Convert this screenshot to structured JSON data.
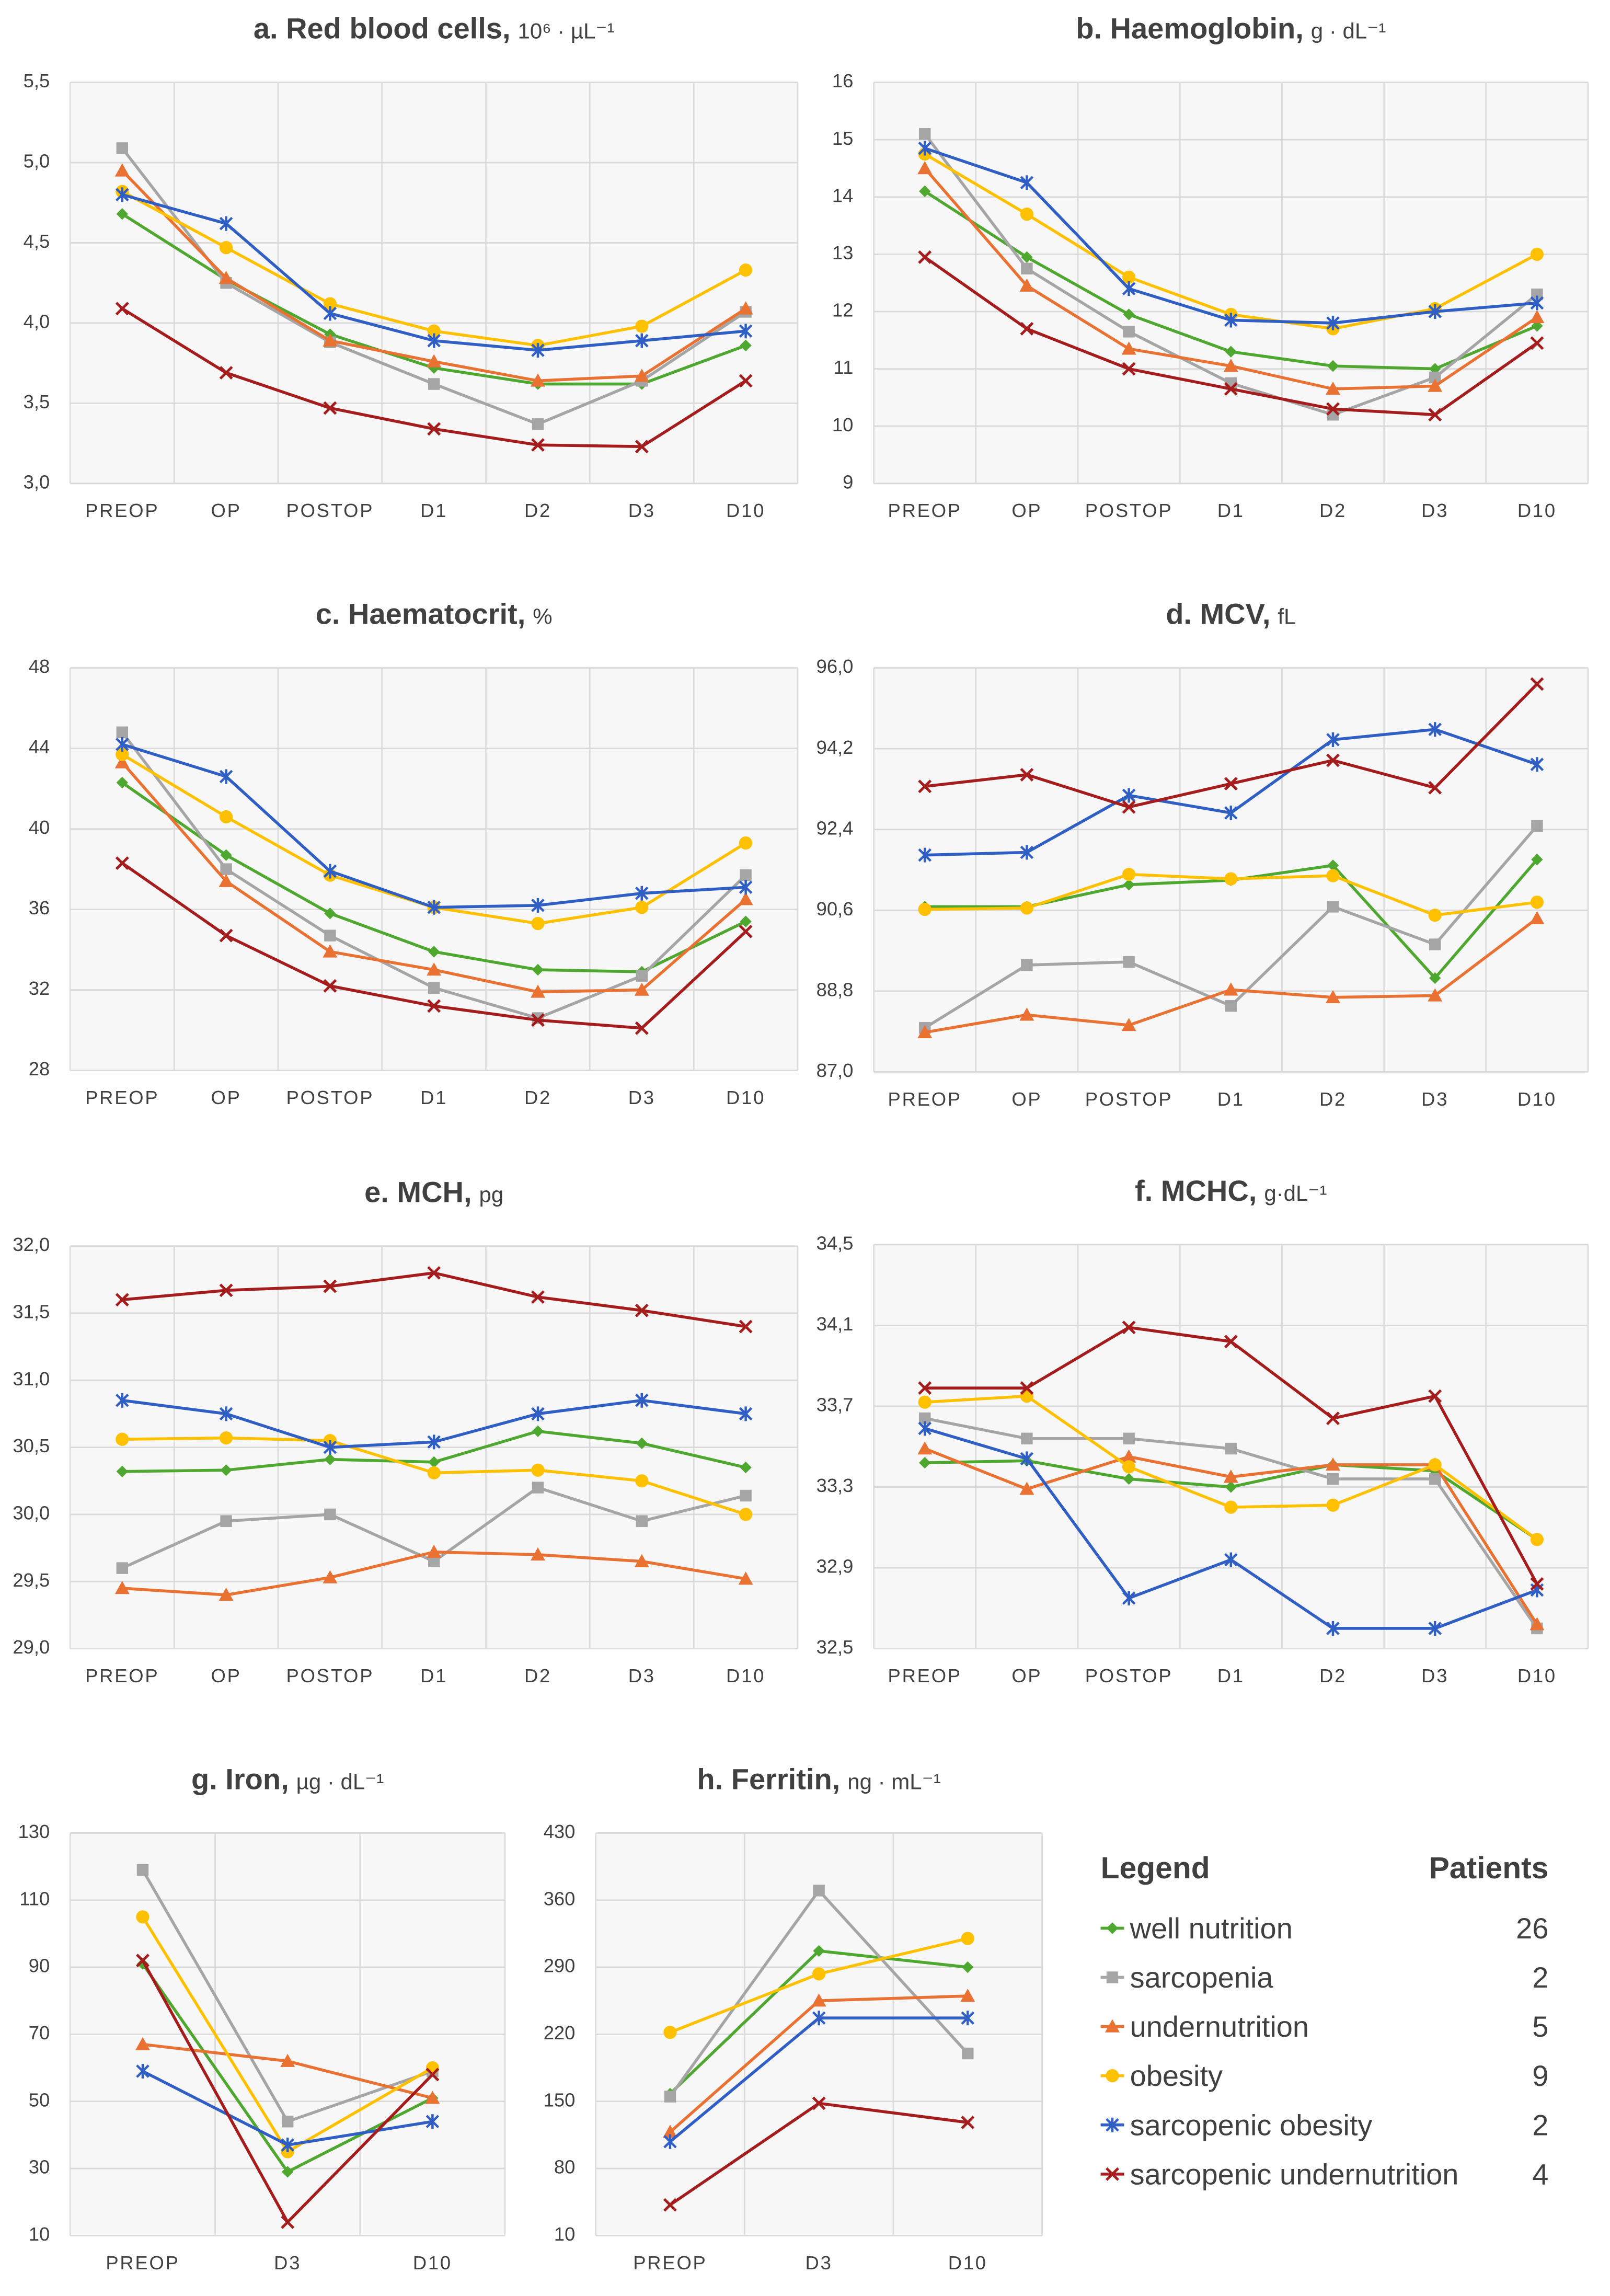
{
  "legend": {
    "title": "Legend",
    "count_header": "Patients",
    "entries": [
      {
        "name": "well nutrition",
        "color": "#4ea72e",
        "marker": "diamond",
        "patients": 26
      },
      {
        "name": "sarcopenia",
        "color": "#a5a5a5",
        "marker": "square",
        "patients": 2
      },
      {
        "name": "undernutrition",
        "color": "#e97132",
        "marker": "triangle",
        "patients": 5
      },
      {
        "name": "obesity",
        "color": "#ffc000",
        "marker": "circle",
        "patients": 9
      },
      {
        "name": "sarcopenic obesity",
        "color": "#2f5ec4",
        "marker": "asterisk",
        "patients": 2
      },
      {
        "name": "sarcopenic undernutrition",
        "color": "#a51c1c",
        "marker": "cross",
        "patients": 4
      }
    ]
  },
  "chart_data": [
    {
      "type": "line",
      "title": "a. Red blood cells,",
      "unit": "10⁶ · µL⁻¹",
      "categories": [
        "PREOP",
        "OP",
        "POSTOP",
        "D1",
        "D2",
        "D3",
        "D10"
      ],
      "ylim": [
        3.0,
        5.5
      ],
      "yticks": [
        {
          "value": 3.0,
          "label": "3,0"
        },
        {
          "value": 3.5,
          "label": "3,5"
        },
        {
          "value": 4.0,
          "label": "4,0"
        },
        {
          "value": 4.5,
          "label": "4,5"
        },
        {
          "value": 5.0,
          "label": "5,0"
        },
        {
          "value": 5.5,
          "label": "5,5"
        }
      ],
      "grid": true,
      "series": [
        {
          "values": [
            4.68,
            4.27,
            3.93,
            3.72,
            3.62,
            3.62,
            3.86
          ]
        },
        {
          "values": [
            5.09,
            4.25,
            3.88,
            3.62,
            3.37,
            3.64,
            4.07
          ]
        },
        {
          "values": [
            4.95,
            4.28,
            3.89,
            3.76,
            3.64,
            3.67,
            4.09
          ]
        },
        {
          "values": [
            4.82,
            4.47,
            4.12,
            3.95,
            3.86,
            3.98,
            4.33
          ]
        },
        {
          "values": [
            4.8,
            4.62,
            4.06,
            3.89,
            3.83,
            3.89,
            3.95
          ]
        },
        {
          "values": [
            4.09,
            3.69,
            3.47,
            3.34,
            3.24,
            3.23,
            3.64
          ]
        }
      ]
    },
    {
      "type": "line",
      "title": "b. Haemoglobin,",
      "unit": "g · dL⁻¹",
      "categories": [
        "PREOP",
        "OP",
        "POSTOP",
        "D1",
        "D2",
        "D3",
        "D10"
      ],
      "ylim": [
        9,
        16
      ],
      "yticks": [
        9,
        10,
        11,
        12,
        13,
        14,
        15,
        16
      ],
      "grid": true,
      "series": [
        {
          "values": [
            14.1,
            12.95,
            11.95,
            11.3,
            11.05,
            11.0,
            11.75
          ]
        },
        {
          "values": [
            15.1,
            12.75,
            11.65,
            10.75,
            10.2,
            10.85,
            12.3
          ]
        },
        {
          "values": [
            14.5,
            12.45,
            11.35,
            11.05,
            10.65,
            10.7,
            11.9
          ]
        },
        {
          "values": [
            14.75,
            13.7,
            12.6,
            11.95,
            11.7,
            12.05,
            13.0
          ]
        },
        {
          "values": [
            14.85,
            14.25,
            12.4,
            11.85,
            11.8,
            12.0,
            12.15
          ]
        },
        {
          "values": [
            12.95,
            11.7,
            11.0,
            10.65,
            10.3,
            10.2,
            11.45
          ]
        }
      ]
    },
    {
      "type": "line",
      "title": "c. Haematocrit,",
      "unit": "%",
      "categories": [
        "PREOP",
        "OP",
        "POSTOP",
        "D1",
        "D2",
        "D3",
        "D10"
      ],
      "ylim": [
        28,
        48
      ],
      "yticks": [
        28,
        32,
        36,
        40,
        44,
        48
      ],
      "grid": true,
      "series": [
        {
          "values": [
            42.3,
            38.7,
            35.8,
            33.9,
            33.0,
            32.9,
            35.4
          ]
        },
        {
          "values": [
            44.8,
            38.0,
            34.7,
            32.1,
            30.6,
            32.7,
            37.7
          ]
        },
        {
          "values": [
            43.3,
            37.4,
            33.9,
            33.0,
            31.9,
            32.0,
            36.5
          ]
        },
        {
          "values": [
            43.7,
            40.6,
            37.7,
            36.1,
            35.3,
            36.1,
            39.3
          ]
        },
        {
          "values": [
            44.2,
            42.6,
            37.9,
            36.1,
            36.2,
            36.8,
            37.1
          ]
        },
        {
          "values": [
            38.3,
            34.7,
            32.2,
            31.2,
            30.5,
            30.1,
            34.9
          ]
        }
      ]
    },
    {
      "type": "line",
      "title": "d. MCV,",
      "unit": "fL",
      "categories": [
        "PREOP",
        "OP",
        "POSTOP",
        "D1",
        "D2",
        "D3",
        "D10"
      ],
      "ylim": [
        87.0,
        96.0
      ],
      "yticks": [
        {
          "value": 87.0,
          "label": "87,0"
        },
        {
          "value": 88.8,
          "label": "88,8"
        },
        {
          "value": 90.6,
          "label": "90,6"
        },
        {
          "value": 92.4,
          "label": "92,4"
        },
        {
          "value": 94.2,
          "label": "94,2"
        },
        {
          "value": 96.0,
          "label": "96,0"
        }
      ],
      "grid": true,
      "series": [
        {
          "values": [
            90.68,
            90.68,
            91.17,
            91.27,
            91.6,
            89.09,
            91.73
          ]
        },
        {
          "values": [
            87.98,
            89.38,
            89.45,
            88.47,
            90.68,
            89.84,
            92.48
          ]
        },
        {
          "values": [
            87.88,
            88.27,
            88.04,
            88.83,
            88.66,
            88.7,
            90.42
          ]
        },
        {
          "values": [
            90.62,
            90.65,
            91.4,
            91.3,
            91.37,
            90.49,
            90.78
          ]
        },
        {
          "values": [
            91.83,
            91.89,
            93.16,
            92.77,
            94.4,
            94.63,
            93.85
          ]
        },
        {
          "values": [
            93.36,
            93.62,
            92.9,
            93.42,
            93.94,
            93.33,
            95.64
          ]
        }
      ]
    },
    {
      "type": "line",
      "title": "e. MCH,",
      "unit": "pg",
      "categories": [
        "PREOP",
        "OP",
        "POSTOP",
        "D1",
        "D2",
        "D3",
        "D10"
      ],
      "ylim": [
        29.0,
        32.0
      ],
      "yticks": [
        {
          "value": 29.0,
          "label": "29,0"
        },
        {
          "value": 29.5,
          "label": "29,5"
        },
        {
          "value": 30.0,
          "label": "30,0"
        },
        {
          "value": 30.5,
          "label": "30,5"
        },
        {
          "value": 31.0,
          "label": "31,0"
        },
        {
          "value": 31.5,
          "label": "31,5"
        },
        {
          "value": 32.0,
          "label": "32,0"
        }
      ],
      "grid": true,
      "series": [
        {
          "values": [
            30.32,
            30.33,
            30.41,
            30.39,
            30.62,
            30.53,
            30.35
          ]
        },
        {
          "values": [
            29.6,
            29.95,
            30.0,
            29.65,
            30.2,
            29.95,
            30.14
          ]
        },
        {
          "values": [
            29.45,
            29.4,
            29.53,
            29.72,
            29.7,
            29.65,
            29.52
          ]
        },
        {
          "values": [
            30.56,
            30.57,
            30.55,
            30.31,
            30.33,
            30.25,
            30.0
          ]
        },
        {
          "values": [
            30.85,
            30.75,
            30.5,
            30.54,
            30.75,
            30.85,
            30.75
          ]
        },
        {
          "values": [
            31.6,
            31.67,
            31.7,
            31.8,
            31.62,
            31.52,
            31.4
          ]
        }
      ]
    },
    {
      "type": "line",
      "title": "f. MCHC,",
      "unit": "g·dL⁻¹",
      "categories": [
        "PREOP",
        "OP",
        "POSTOP",
        "D1",
        "D2",
        "D3",
        "D10"
      ],
      "ylim": [
        32.5,
        34.5
      ],
      "yticks": [
        {
          "value": 32.5,
          "label": "32,5"
        },
        {
          "value": 32.9,
          "label": "32,9"
        },
        {
          "value": 33.3,
          "label": "33,3"
        },
        {
          "value": 33.7,
          "label": "33,7"
        },
        {
          "value": 34.1,
          "label": "34,1"
        },
        {
          "value": 34.5,
          "label": "34,5"
        }
      ],
      "grid": true,
      "series": [
        {
          "values": [
            33.42,
            33.43,
            33.34,
            33.3,
            33.41,
            33.38,
            33.04
          ]
        },
        {
          "values": [
            33.64,
            33.54,
            33.54,
            33.49,
            33.34,
            33.34,
            32.6
          ]
        },
        {
          "values": [
            33.49,
            33.29,
            33.45,
            33.35,
            33.41,
            33.41,
            32.62
          ]
        },
        {
          "values": [
            33.72,
            33.75,
            33.4,
            33.2,
            33.21,
            33.41,
            33.04
          ]
        },
        {
          "values": [
            33.59,
            33.44,
            32.75,
            32.94,
            32.6,
            32.6,
            32.79
          ]
        },
        {
          "values": [
            33.79,
            33.79,
            34.09,
            34.02,
            33.64,
            33.75,
            32.82
          ]
        }
      ]
    },
    {
      "type": "line",
      "title": "g. Iron,",
      "unit": "µg · dL⁻¹",
      "categories": [
        "PREOP",
        "D3",
        "D10"
      ],
      "ylim": [
        10,
        130
      ],
      "yticks": [
        10,
        30,
        50,
        70,
        90,
        110,
        130
      ],
      "grid": true,
      "series": [
        {
          "values": [
            91,
            29,
            51
          ]
        },
        {
          "values": [
            119,
            44,
            59
          ]
        },
        {
          "values": [
            67,
            62,
            51
          ]
        },
        {
          "values": [
            105,
            35,
            60
          ]
        },
        {
          "values": [
            59,
            37,
            44
          ]
        },
        {
          "values": [
            92,
            14,
            58
          ]
        }
      ]
    },
    {
      "type": "line",
      "title": "h. Ferritin,",
      "unit": "ng · mL⁻¹",
      "categories": [
        "PREOP",
        "D3",
        "D10"
      ],
      "ylim": [
        10,
        430
      ],
      "yticks": [
        10,
        80,
        150,
        220,
        290,
        360,
        430
      ],
      "grid": true,
      "series": [
        {
          "values": [
            158,
            307,
            290
          ]
        },
        {
          "values": [
            155,
            370,
            200
          ]
        },
        {
          "values": [
            118,
            255,
            260
          ]
        },
        {
          "values": [
            222,
            283,
            320
          ]
        },
        {
          "values": [
            108,
            237,
            237
          ]
        },
        {
          "values": [
            42,
            148,
            128
          ]
        }
      ]
    }
  ]
}
